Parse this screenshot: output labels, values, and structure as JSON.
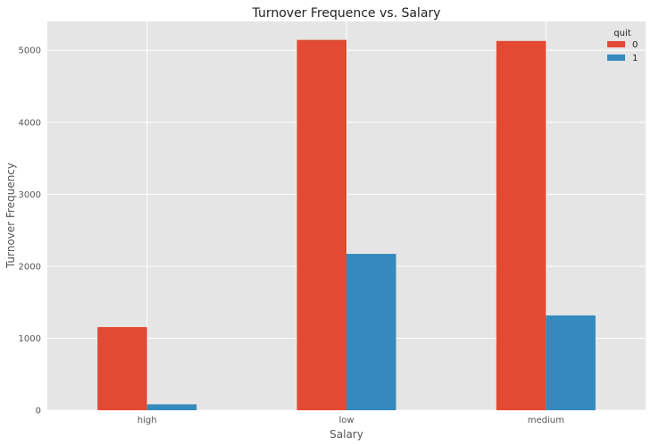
{
  "chart_data": {
    "type": "bar",
    "title": "Turnover Frequence vs. Salary",
    "xlabel": "Salary",
    "ylabel": "Turnover Frequency",
    "categories": [
      "high",
      "low",
      "medium"
    ],
    "series": [
      {
        "name": "0",
        "values": [
          1155,
          5144,
          5129
        ]
      },
      {
        "name": "1",
        "values": [
          82,
          2172,
          1317
        ]
      }
    ],
    "ylim": [
      0,
      5400
    ],
    "yticks": [
      0,
      1000,
      2000,
      3000,
      4000,
      5000
    ],
    "grid": true,
    "legend": {
      "title": "quit",
      "placement": "top-right"
    },
    "colors": {
      "series": [
        "#E24A33",
        "#348ABD"
      ],
      "background": "#E5E5E5",
      "grid": "#FFFFFF"
    }
  }
}
